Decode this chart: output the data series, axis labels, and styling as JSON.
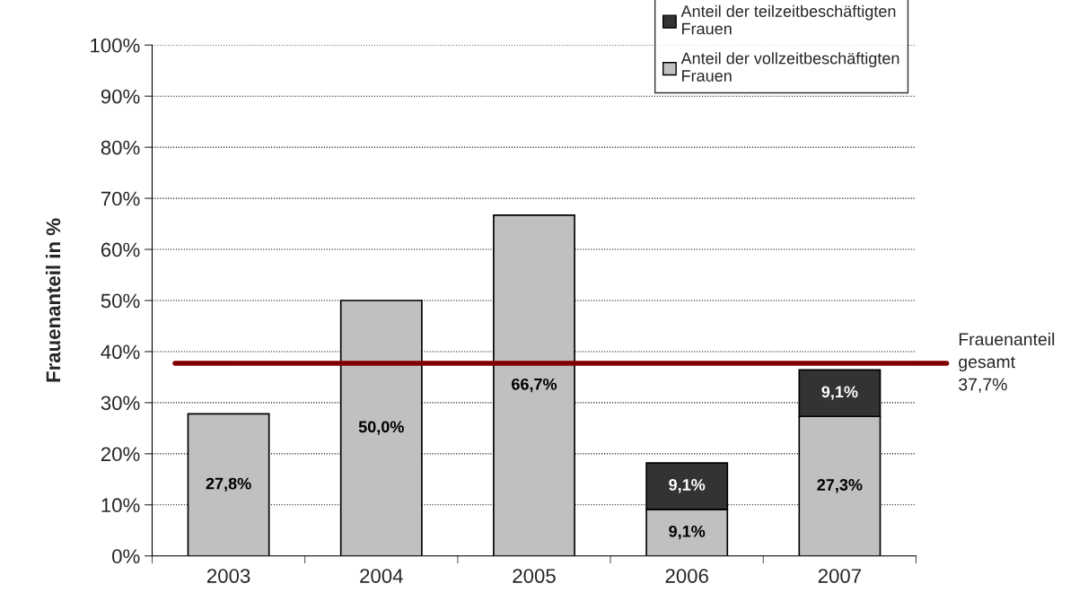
{
  "chart_data": {
    "type": "bar",
    "stacked": true,
    "ylabel": "Frauenanteil in %",
    "categories": [
      "2003",
      "2004",
      "2005",
      "2006",
      "2007"
    ],
    "series": [
      {
        "name": "Anteil der vollzeitbeschäftigten Frauen",
        "color": "#c0c0c0",
        "values": [
          27.8,
          50.0,
          66.7,
          9.1,
          27.3
        ],
        "value_labels": [
          "27,8%",
          "50,0%",
          "66,7%",
          "9,1%",
          "27,3%"
        ]
      },
      {
        "name": "Anteil der teilzeitbeschäftigten Frauen",
        "color": "#333333",
        "values": [
          null,
          null,
          null,
          9.1,
          9.1
        ],
        "value_labels": [
          null,
          null,
          null,
          "9,1%",
          "9,1%"
        ]
      }
    ],
    "ylim": [
      0,
      100
    ],
    "yticks": [
      {
        "value": 0,
        "label": "0%"
      },
      {
        "value": 10,
        "label": "10%"
      },
      {
        "value": 20,
        "label": "20%"
      },
      {
        "value": 30,
        "label": "30%"
      },
      {
        "value": 40,
        "label": "40%"
      },
      {
        "value": 50,
        "label": "50%"
      },
      {
        "value": 60,
        "label": "60%"
      },
      {
        "value": 70,
        "label": "70%"
      },
      {
        "value": 80,
        "label": "80%"
      },
      {
        "value": 90,
        "label": "90%"
      },
      {
        "value": 100,
        "label": "100%"
      }
    ],
    "ref_lines": [
      {
        "axis": "y",
        "value": 37.7,
        "label": "Frauenanteil\ngesamt\n37,7%",
        "color": "#800000"
      }
    ],
    "grid": "y",
    "legend": "top right"
  }
}
